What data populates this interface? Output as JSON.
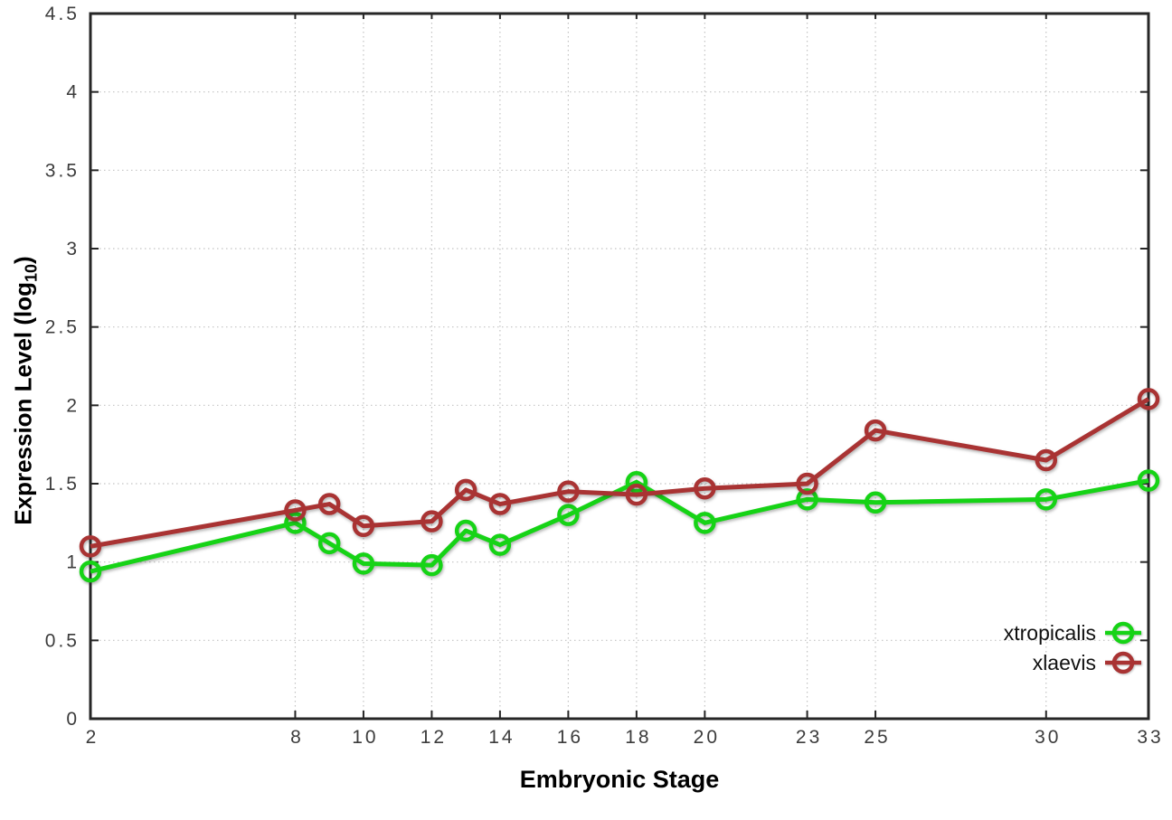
{
  "figure": {
    "background": "#ffffff"
  },
  "chart_data": {
    "type": "line",
    "title": "",
    "xlabel": "Embryonic Stage",
    "ylabel": "Expression Level (log10)",
    "ylabel_display": {
      "pre": "Expression Level (log",
      "sub": "10",
      "post": ")"
    },
    "x": [
      2,
      8,
      9,
      10,
      12,
      13,
      14,
      16,
      18,
      20,
      23,
      25,
      30,
      33
    ],
    "series": [
      {
        "name": "xtropicalis",
        "color": "#16d316",
        "values": [
          0.94,
          1.25,
          1.12,
          0.99,
          0.98,
          1.2,
          1.11,
          1.3,
          1.51,
          1.25,
          1.4,
          1.38,
          1.4,
          1.52
        ]
      },
      {
        "name": "xlaevis",
        "color": "#a93333",
        "values": [
          1.1,
          1.33,
          1.37,
          1.23,
          1.26,
          1.46,
          1.37,
          1.45,
          1.43,
          1.47,
          1.5,
          1.84,
          1.65,
          2.04
        ]
      }
    ],
    "xlim": [
      2,
      33
    ],
    "ylim": [
      0,
      4.5
    ],
    "x_ticks": [
      2,
      8,
      10,
      12,
      14,
      16,
      18,
      20,
      23,
      25,
      30,
      33
    ],
    "x_tick_labels": [
      "2",
      "8",
      "10",
      "12",
      "14",
      "16",
      "18",
      "20",
      "23",
      "25",
      "30",
      "33"
    ],
    "y_ticks": [
      0,
      0.5,
      1,
      1.5,
      2,
      2.5,
      3,
      3.5,
      4,
      4.5
    ],
    "y_tick_labels": [
      "0",
      "0.5",
      "1",
      "1.5",
      "2",
      "2.5",
      "3",
      "3.5",
      "4",
      "4.5"
    ],
    "grid": true,
    "legend_position": "bottom-right",
    "style": {
      "grid_color": "#c3c3c3",
      "border_color": "#262626",
      "tick_label_color": "#3c3c3c"
    }
  }
}
